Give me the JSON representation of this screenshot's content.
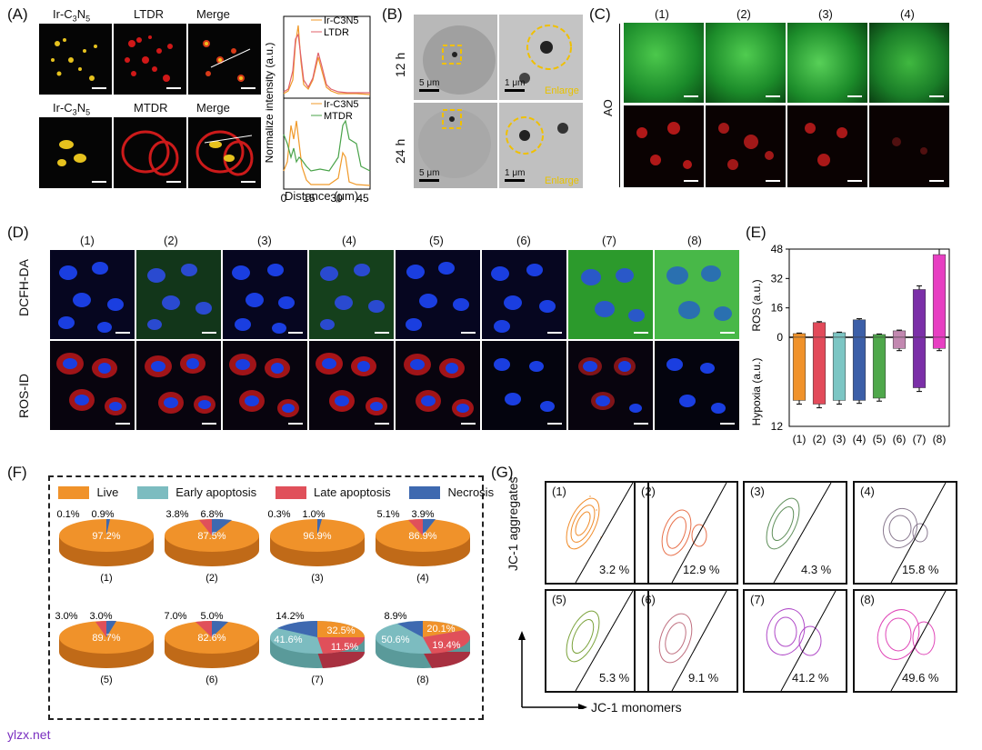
{
  "panel_labels": {
    "a": "(A)",
    "b": "(B)",
    "c": "(C)",
    "d": "(D)",
    "e": "(E)",
    "f": "(F)",
    "g": "(G)"
  },
  "panelA": {
    "top_titles": [
      "Ir-C",
      "LTDR",
      "Merge"
    ],
    "bottom_titles": [
      "Ir-C",
      "MTDR",
      "Merge"
    ],
    "ir_sub": {
      "three": "3",
      "n": "N",
      "five": "5"
    },
    "plot": {
      "ylabel": "Normalize intensity (a.u.)",
      "xlabel": "Distance (μm)",
      "xticks": [
        "0",
        "15",
        "30",
        "45"
      ],
      "legend_top": [
        "Ir-C3N5",
        "LTDR"
      ],
      "legend_bottom": [
        "Ir-C3N5",
        "MTDR"
      ],
      "colors": {
        "ir": "#f09a2a",
        "ltdr": "#e0606a",
        "mtdr": "#4aa34a"
      }
    }
  },
  "panelB": {
    "row_labels": [
      "12 h",
      "24 h"
    ],
    "scale_left": "5 μm",
    "scale_right": "1 μm",
    "enlarge": "Enlarge"
  },
  "panelC": {
    "cols": [
      "(1)",
      "(2)",
      "(3)",
      "(4)"
    ],
    "row_label": "AO"
  },
  "panelD": {
    "cols": [
      "(1)",
      "(2)",
      "(3)",
      "(4)",
      "(5)",
      "(6)",
      "(7)",
      "(8)"
    ],
    "rows": [
      "DCFH-DA",
      "ROS-ID"
    ]
  },
  "chart_data": {
    "type": "bar",
    "title": "",
    "categories": [
      "(1)",
      "(2)",
      "(3)",
      "(4)",
      "(5)",
      "(6)",
      "(7)",
      "(8)"
    ],
    "series": [
      {
        "name": "ROS",
        "values": [
          2,
          8,
          2.5,
          9.5,
          1.5,
          3.5,
          26,
          45
        ],
        "errors": [
          0.3,
          0.5,
          0.3,
          0.6,
          0.3,
          0.4,
          2,
          3
        ]
      },
      {
        "name": "Hypoxia",
        "values": [
          8.5,
          9,
          8.5,
          8.5,
          8.2,
          1.5,
          6.8,
          1.5
        ],
        "errors": [
          0.5,
          0.5,
          0.5,
          0.4,
          0.4,
          0.3,
          0.5,
          0.3
        ]
      }
    ],
    "colors": [
      "#f0922a",
      "#e24a5a",
      "#7cc6c4",
      "#3c5fa8",
      "#4fa84b",
      "#c288b0",
      "#7b2fa8",
      "#e73fc2"
    ],
    "ylabel_top": "ROS (a.u.)",
    "ylabel_bottom": "Hypoxia (a.u.)",
    "yticks_top": [
      "16",
      "32",
      "48"
    ],
    "ytick_zero": "0",
    "ytick_bottom": "12",
    "ylim_top": [
      0,
      48
    ],
    "ylim_bottom": [
      0,
      12
    ]
  },
  "panelF": {
    "legend": [
      {
        "label": "Live",
        "color": "#f0922a"
      },
      {
        "label": "Early apoptosis",
        "color": "#7cbcc0"
      },
      {
        "label": "Late apoptosis",
        "color": "#e0505a"
      },
      {
        "label": "Necrosis",
        "color": "#3e69b0"
      }
    ],
    "pies": [
      {
        "label": "(1)",
        "live": "97.2%",
        "late": "0.1%",
        "nec": "0.9%"
      },
      {
        "label": "(2)",
        "live": "87.5%",
        "late": "3.8%",
        "nec": "6.8%"
      },
      {
        "label": "(3)",
        "live": "96.9%",
        "late": "0.3%",
        "nec": "1.0%"
      },
      {
        "label": "(4)",
        "live": "86.9%",
        "late": "5.1%",
        "nec": "3.9%"
      },
      {
        "label": "(5)",
        "live": "89.7%",
        "late": "3.0%",
        "nec": "3.0%"
      },
      {
        "label": "(6)",
        "live": "82.6%",
        "late": "7.0%",
        "nec": "5.0%"
      },
      {
        "label": "(7)",
        "live": "32.5%",
        "early": "41.6%",
        "late": "11.5%",
        "nec": "14.2%"
      },
      {
        "label": "(8)",
        "live": "20.1%",
        "early": "50.6%",
        "late": "19.4%",
        "nec": "8.9%"
      }
    ]
  },
  "panelG": {
    "ylabel": "JC-1 aggregates",
    "xlabel": "JC-1 monomers",
    "plots": [
      {
        "label": "(1)",
        "pct": "3.2 %",
        "color": "#f08c2a"
      },
      {
        "label": "(2)",
        "pct": "12.9 %",
        "color": "#e8704a"
      },
      {
        "label": "(3)",
        "pct": "4.3 %",
        "color": "#5f8f5a"
      },
      {
        "label": "(4)",
        "pct": "15.8 %",
        "color": "#8a7a90"
      },
      {
        "label": "(5)",
        "pct": "5.3 %",
        "color": "#7aa23a"
      },
      {
        "label": "(6)",
        "pct": "9.1 %",
        "color": "#c07080"
      },
      {
        "label": "(7)",
        "pct": "41.2 %",
        "color": "#b04ac8"
      },
      {
        "label": "(8)",
        "pct": "49.6 %",
        "color": "#e048b8"
      }
    ]
  },
  "watermark": "ylzx.net"
}
